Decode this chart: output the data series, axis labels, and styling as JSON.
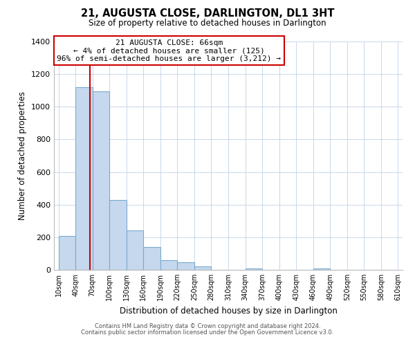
{
  "title": "21, AUGUSTA CLOSE, DARLINGTON, DL1 3HT",
  "subtitle": "Size of property relative to detached houses in Darlington",
  "xlabel": "Distribution of detached houses by size in Darlington",
  "ylabel": "Number of detached properties",
  "bar_fill_color": "#c5d8ed",
  "bar_edge_color": "#7aaace",
  "marker_line_color": "#cc0000",
  "marker_value": 66,
  "bin_edges": [
    10,
    40,
    70,
    100,
    130,
    160,
    190,
    220,
    250,
    280,
    310,
    340,
    370,
    400,
    430,
    460,
    490,
    520,
    550,
    580,
    610
  ],
  "bin_labels": [
    "10sqm",
    "40sqm",
    "70sqm",
    "100sqm",
    "130sqm",
    "160sqm",
    "190sqm",
    "220sqm",
    "250sqm",
    "280sqm",
    "310sqm",
    "340sqm",
    "370sqm",
    "400sqm",
    "430sqm",
    "460sqm",
    "490sqm",
    "520sqm",
    "550sqm",
    "580sqm",
    "610sqm"
  ],
  "counts": [
    210,
    1120,
    1095,
    430,
    240,
    140,
    60,
    45,
    20,
    0,
    0,
    10,
    0,
    0,
    0,
    10,
    0,
    0,
    0,
    0
  ],
  "ylim": [
    0,
    1400
  ],
  "yticks": [
    0,
    200,
    400,
    600,
    800,
    1000,
    1200,
    1400
  ],
  "annotation_title": "21 AUGUSTA CLOSE: 66sqm",
  "annotation_line1": "← 4% of detached houses are smaller (125)",
  "annotation_line2": "96% of semi-detached houses are larger (3,212) →",
  "annotation_box_color": "#ffffff",
  "annotation_box_edge": "#cc0000",
  "footer1": "Contains HM Land Registry data © Crown copyright and database right 2024.",
  "footer2": "Contains public sector information licensed under the Open Government Licence v3.0.",
  "background_color": "#ffffff",
  "grid_color": "#c8d8e8"
}
